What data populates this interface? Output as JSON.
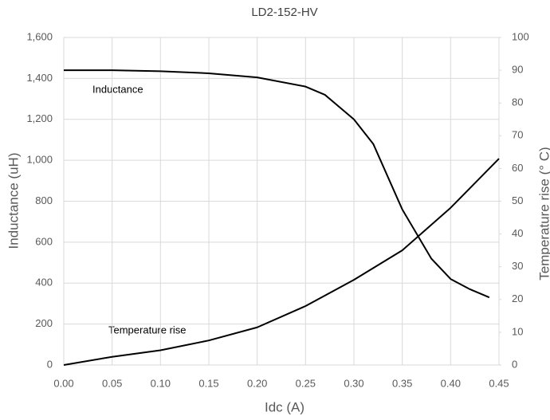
{
  "chart_data": {
    "type": "line",
    "title": "LD2-152-HV",
    "x_label": "Idc (A)",
    "y_label": "Inductance (uH)",
    "y2_label": "Temperature rise (° C)",
    "annotations": [
      "Inductance",
      "Temperature rise"
    ],
    "xlim": [
      0,
      0.45
    ],
    "xticks": [
      {
        "value": 0,
        "label": "0.00"
      },
      {
        "value": 0.05,
        "label": "0.05"
      },
      {
        "value": 0.1,
        "label": "0.10"
      },
      {
        "value": 0.15,
        "label": "0.15"
      },
      {
        "value": 0.2,
        "label": "0.20"
      },
      {
        "value": 0.25,
        "label": "0.25"
      },
      {
        "value": 0.3,
        "label": "0.30"
      },
      {
        "value": 0.35,
        "label": "0.35"
      },
      {
        "value": 0.4,
        "label": "0.40"
      },
      {
        "value": 0.45,
        "label": "0.45"
      }
    ],
    "ylim": [
      0,
      1600
    ],
    "yticks": [
      0,
      200,
      400,
      600,
      800,
      {
        "value": 1000,
        "label": "1,000"
      },
      {
        "value": 1200,
        "label": "1,200"
      },
      {
        "value": 1400,
        "label": "1,400"
      },
      {
        "value": 1600,
        "label": "1,600"
      }
    ],
    "y2lim": [
      0,
      100
    ],
    "y2ticks": [
      0,
      10,
      20,
      30,
      40,
      50,
      60,
      70,
      80,
      90,
      100
    ],
    "grid": true,
    "series": [
      {
        "name": "Inductance",
        "color": "#000000",
        "x": [
          0,
          0.05,
          0.1,
          0.15,
          0.2,
          0.25,
          0.27,
          0.3,
          0.32,
          0.35,
          0.38,
          0.4,
          0.42,
          0.44
        ],
        "values": [
          1440,
          1440,
          1435,
          1425,
          1405,
          1360,
          1320,
          1200,
          1080,
          760,
          520,
          420,
          370,
          330
        ]
      },
      {
        "name": "Temperature rise",
        "color": "#000000",
        "axis": "y2",
        "x": [
          0,
          0.05,
          0.1,
          0.15,
          0.2,
          0.25,
          0.3,
          0.35,
          0.4,
          0.45
        ],
        "values": [
          0,
          2.5,
          4.5,
          7.5,
          11.5,
          18,
          26,
          35,
          48,
          63
        ]
      }
    ]
  }
}
